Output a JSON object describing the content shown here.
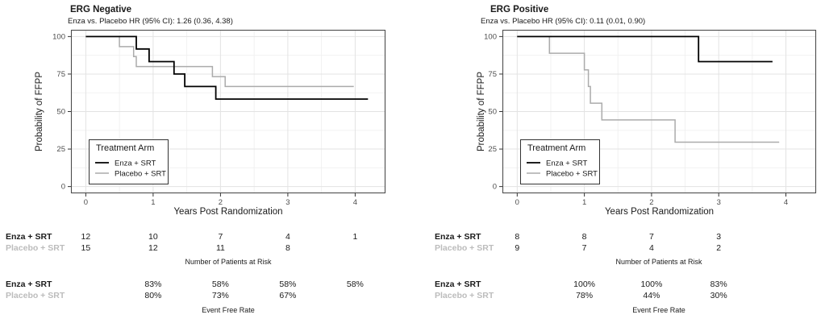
{
  "colors": {
    "enza_line": "#000000",
    "placebo_line": "#ababab",
    "muted_label": "#bcbcbc",
    "grid_major": "#e3e3e3",
    "grid_minor": "#f0f0f0",
    "panel_border": "#4d4d4d",
    "tick_text": "#4d4d4d"
  },
  "chart_data": [
    {
      "type": "line",
      "variant": "kaplan-meier-step",
      "title": "ERG Negative",
      "subtitle": "Enza vs. Placebo HR (95% CI): 1.26 (0.36, 4.38)",
      "xlabel": "Years Post Randomization",
      "ylabel": "Probability of FFPP",
      "xlim": [
        -0.22,
        4.45
      ],
      "ylim": [
        -4.5,
        104.5
      ],
      "xticks": [
        0,
        1,
        2,
        3,
        4
      ],
      "yticks": [
        0,
        25,
        50,
        75,
        100
      ],
      "grid": "major+minor",
      "legend": {
        "title": "Treatment Arm",
        "position": "inside-bottom-left",
        "entries": [
          "Enza + SRT",
          "Placebo + SRT"
        ]
      },
      "series": [
        {
          "name": "Enza + SRT",
          "color": "#000000",
          "width": 1.8,
          "points": [
            [
              0,
              100
            ],
            [
              0.75,
              100
            ],
            [
              0.75,
              91.7
            ],
            [
              0.94,
              91.7
            ],
            [
              0.94,
              83.3
            ],
            [
              1.31,
              83.3
            ],
            [
              1.31,
              75
            ],
            [
              1.47,
              75
            ],
            [
              1.47,
              66.7
            ],
            [
              1.93,
              66.7
            ],
            [
              1.93,
              58.3
            ],
            [
              4.19,
              58.3
            ]
          ]
        },
        {
          "name": "Placebo + SRT",
          "color": "#ababab",
          "width": 1.5,
          "points": [
            [
              0,
              100
            ],
            [
              0.5,
              100
            ],
            [
              0.5,
              93.3
            ],
            [
              0.71,
              93.3
            ],
            [
              0.71,
              86.7
            ],
            [
              0.75,
              86.7
            ],
            [
              0.75,
              80
            ],
            [
              1.88,
              80
            ],
            [
              1.88,
              73.3
            ],
            [
              2.07,
              73.3
            ],
            [
              2.07,
              66.7
            ],
            [
              3.98,
              66.7
            ]
          ]
        }
      ],
      "risk_table": {
        "caption": "Number of Patients at Risk",
        "rows": [
          {
            "label": "Enza + SRT",
            "muted": false,
            "years": [
              0,
              1,
              2,
              3,
              4
            ],
            "values": [
              "12",
              "10",
              "7",
              "4",
              "1"
            ]
          },
          {
            "label": "Placebo + SRT",
            "muted": true,
            "years": [
              0,
              1,
              2,
              3
            ],
            "values": [
              "15",
              "12",
              "11",
              "8"
            ]
          }
        ]
      },
      "event_table": {
        "caption": "Event Free Rate",
        "rows": [
          {
            "label": "Enza + SRT",
            "muted": false,
            "years": [
              1,
              2,
              3,
              4
            ],
            "values": [
              "83%",
              "58%",
              "58%",
              "58%"
            ]
          },
          {
            "label": "Placebo + SRT",
            "muted": true,
            "years": [
              1,
              2,
              3
            ],
            "values": [
              "80%",
              "73%",
              "67%"
            ]
          }
        ]
      }
    },
    {
      "type": "line",
      "variant": "kaplan-meier-step",
      "title": "ERG Positive",
      "subtitle": "Enza vs. Placebo HR (95% CI): 0.11 (0.01, 0.90)",
      "xlabel": "Years Post Randomization",
      "ylabel": "Probability of FFPP",
      "xlim": [
        -0.22,
        4.45
      ],
      "ylim": [
        -4.5,
        104.5
      ],
      "xticks": [
        0,
        1,
        2,
        3,
        4
      ],
      "yticks": [
        0,
        25,
        50,
        75,
        100
      ],
      "grid": "major+minor",
      "legend": {
        "title": "Treatment Arm",
        "position": "inside-bottom-left",
        "entries": [
          "Enza + SRT",
          "Placebo + SRT"
        ]
      },
      "series": [
        {
          "name": "Enza + SRT",
          "color": "#000000",
          "width": 1.8,
          "points": [
            [
              0,
              100
            ],
            [
              2.7,
              100
            ],
            [
              2.7,
              83.3
            ],
            [
              3.8,
              83.3
            ]
          ]
        },
        {
          "name": "Placebo + SRT",
          "color": "#ababab",
          "width": 1.5,
          "points": [
            [
              0,
              100
            ],
            [
              0.48,
              100
            ],
            [
              0.48,
              88.9
            ],
            [
              1.0,
              88.9
            ],
            [
              1.0,
              77.8
            ],
            [
              1.06,
              77.8
            ],
            [
              1.06,
              66.7
            ],
            [
              1.09,
              66.7
            ],
            [
              1.09,
              55.6
            ],
            [
              1.26,
              55.6
            ],
            [
              1.26,
              44.4
            ],
            [
              2.35,
              44.4
            ],
            [
              2.35,
              29.6
            ],
            [
              3.9,
              29.6
            ]
          ]
        }
      ],
      "risk_table": {
        "caption": "Number of Patients at Risk",
        "rows": [
          {
            "label": "Enza + SRT",
            "muted": false,
            "years": [
              0,
              1,
              2,
              3
            ],
            "values": [
              "8",
              "8",
              "7",
              "3"
            ]
          },
          {
            "label": "Placebo + SRT",
            "muted": true,
            "years": [
              0,
              1,
              2,
              3
            ],
            "values": [
              "9",
              "7",
              "4",
              "2"
            ]
          }
        ]
      },
      "event_table": {
        "caption": "Event Free Rate",
        "rows": [
          {
            "label": "Enza + SRT",
            "muted": false,
            "years": [
              1,
              2,
              3
            ],
            "values": [
              "100%",
              "100%",
              "83%"
            ]
          },
          {
            "label": "Placebo + SRT",
            "muted": true,
            "years": [
              1,
              2,
              3
            ],
            "values": [
              "78%",
              "44%",
              "30%"
            ]
          }
        ]
      }
    }
  ]
}
